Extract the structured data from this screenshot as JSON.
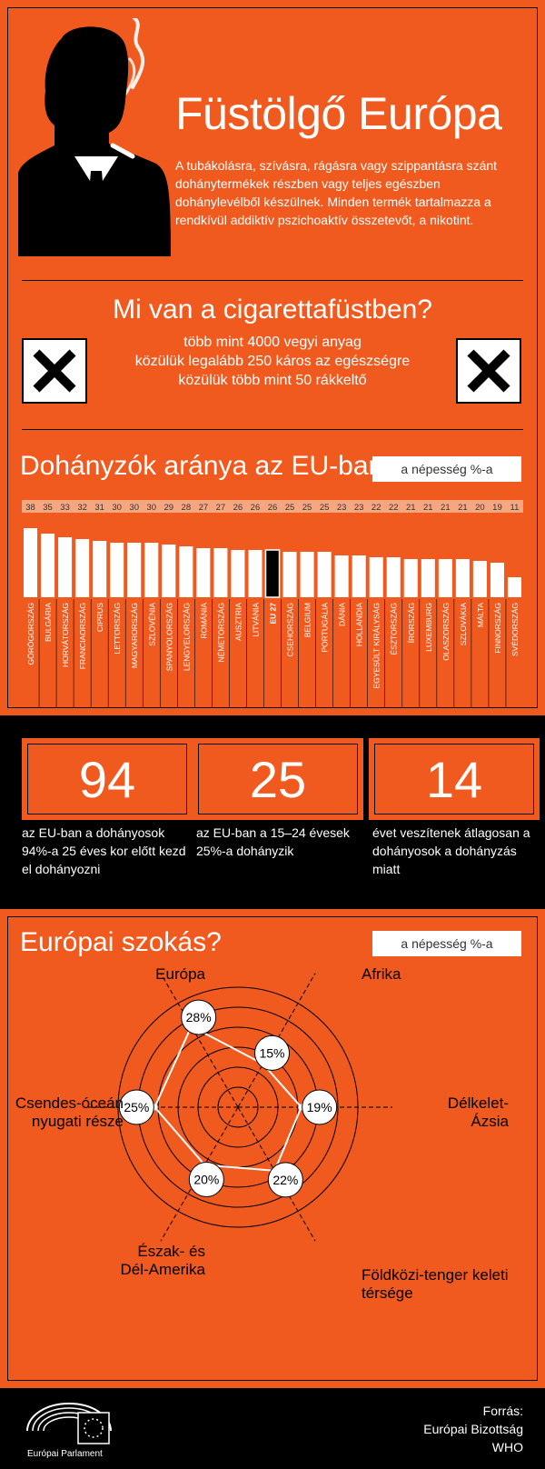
{
  "header": {
    "title": "Füstölgő Európa",
    "intro": "A tubákolásra, szívásra, rágásra vagy szippantásra szánt dohánytermékek részben vagy teljes egészben dohánylevélből készülnek. Minden termék tartalmazza a rendkívül addiktív pszichoaktív összetevőt, a nikotint."
  },
  "smoke": {
    "title": "Mi van a cigarettafüstben?",
    "lines": [
      "több mint 4000 vegyi anyag",
      "közülük legalább 250 káros az egészségre",
      "közülük több mint 50 rákkeltő"
    ],
    "icon": "hazard-x-icon"
  },
  "colors": {
    "orange": "#f15a1f",
    "black": "#000000",
    "white": "#ffffff"
  },
  "chart_data": [
    {
      "type": "bar",
      "title": "Dohányzók aránya az EU-ban",
      "unit_label": "a népesség %-a",
      "categories": [
        "GÖRÖGORSZÁG",
        "BULGÁRIA",
        "HORVÁTORSZÁG",
        "FRANCIAORSZÁG",
        "CIPRUS",
        "LETTORSZÁG",
        "MAGYARORSZÁG",
        "SZLOVÉNIA",
        "SPANYOLORSZÁG",
        "LENGYELORSZÁG",
        "ROMÁNIA",
        "NÉMETORSZÁG",
        "AUSZTRIA",
        "LITVÁNIA",
        "EU 27",
        "CSEHORSZÁG",
        "BELGIUM",
        "PORTUGÁLIA",
        "DÁNIA",
        "HOLLANDIA",
        "EGYESÜLT KIRÁLYSÁG",
        "ÉSZTORSZÁG",
        "ÍRORSZÁG",
        "LUXEMBURG",
        "OLASZORSZÁG",
        "SZLOVÁKIA",
        "MÁLTA",
        "FINNORSZÁG",
        "SVÉDORSZÁG"
      ],
      "values": [
        38,
        35,
        33,
        32,
        31,
        30,
        30,
        30,
        29,
        28,
        27,
        27,
        26,
        26,
        26,
        25,
        25,
        25,
        23,
        23,
        22,
        22,
        21,
        21,
        21,
        21,
        20,
        19,
        11
      ],
      "highlight": "EU 27",
      "ylim": [
        0,
        40
      ]
    },
    {
      "type": "radar",
      "title": "Európai szokás?",
      "unit_label": "a népesség %-a",
      "categories": [
        "Európa",
        "Afrika",
        "Délkelet-Ázsia",
        "Földközi-tenger keleti térsége",
        "Észak- és Dél-Amerika",
        "Csendes-óceán nyugati része"
      ],
      "values": [
        28,
        15,
        19,
        22,
        20,
        25
      ],
      "value_labels": [
        "28%",
        "15%",
        "19%",
        "22%",
        "20%",
        "25%"
      ],
      "range": [
        0,
        30
      ]
    }
  ],
  "stats": [
    {
      "value": "94",
      "text": "az EU-ban a dohányosok 94%-a 25 éves kor előtt kezd el dohányozni"
    },
    {
      "value": "25",
      "text": "az EU-ban a 15–24 évesek 25%-a dohányzik"
    },
    {
      "value": "14",
      "text": "évet veszítenek átlagosan a dohányosok a dohányzás miatt"
    }
  ],
  "footer": {
    "logo_label": "Európai Parlament",
    "source_lines": [
      "Forrás:",
      "Európai Bizottság",
      "WHO"
    ]
  }
}
